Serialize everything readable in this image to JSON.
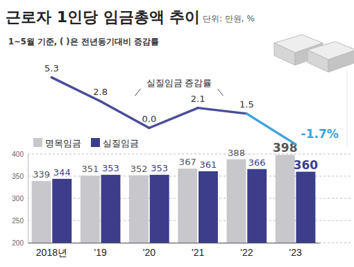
{
  "chart_data": {
    "type": "bar",
    "title": "근로자 1인당 임금총액 추이",
    "subtitle": "1~5월 기준, ( )은 전년동기대비 증감률",
    "annotations": [
      "단위: 만원, %"
    ],
    "categories": [
      "2018년",
      "'19",
      "'20",
      "'21",
      "'22",
      "'23"
    ],
    "series": [
      {
        "name": "명목임금",
        "type": "bar",
        "color": "#c8c8cc",
        "values": [
          339,
          351,
          352,
          367,
          388,
          398
        ]
      },
      {
        "name": "실질임금",
        "type": "bar",
        "color": "#3d3d8c",
        "values": [
          344,
          353,
          353,
          361,
          366,
          360
        ]
      },
      {
        "name": "실질임금 증감률",
        "type": "line",
        "axis": "y2",
        "colors": [
          "#4b4b9a",
          "#4b4b9a",
          "#4b4b9a",
          "#4b4b9a",
          "#4b4b9a",
          "#3aa3dc"
        ],
        "values": [
          5.3,
          2.8,
          0.0,
          2.1,
          1.5,
          -1.7
        ],
        "value_labels": [
          "5.3",
          "2.8",
          "0.0",
          "2.1",
          "1.5",
          "-1.7%"
        ]
      }
    ],
    "ylim": [
      200,
      400
    ],
    "yticks": [
      200,
      250,
      300,
      350,
      400
    ],
    "y2lim": [
      -2,
      6
    ],
    "grid": true,
    "legend": "top-left",
    "data_labels": true
  }
}
